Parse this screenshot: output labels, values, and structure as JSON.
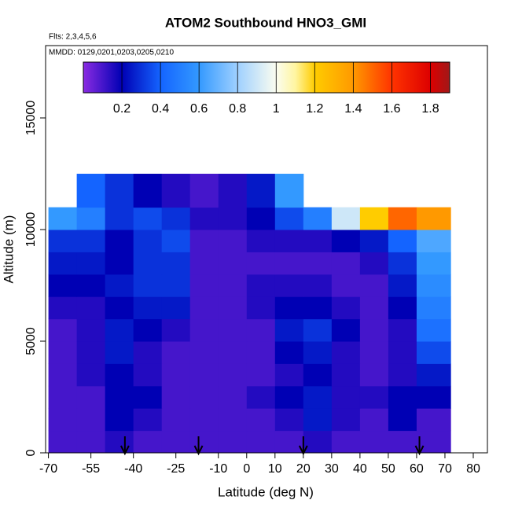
{
  "chart_data": {
    "type": "heatmap",
    "title": "ATOM2 Southbound HNO3_GMI",
    "subtitle": "Flts: 2,3,4,5,6",
    "annotation": "MMDD: 0129,0201,0203,0205,0210",
    "x_label": "Latitude (deg N)",
    "y_label": "Altitude (m)",
    "xlim": [
      -71,
      85
    ],
    "ylim": [
      0,
      18240
    ],
    "xticks": [
      -70,
      -55,
      -40,
      -25,
      -10,
      0,
      10,
      20,
      30,
      40,
      50,
      60,
      70,
      80
    ],
    "yticks": [
      0,
      5000,
      10000,
      15000
    ],
    "x_edges": [
      -70,
      -60,
      -50,
      -40,
      -30,
      -20,
      -10,
      0,
      10,
      20,
      30,
      40,
      50,
      60,
      72
    ],
    "y_edges": [
      0,
      1000,
      2000,
      3000,
      4000,
      5000,
      6000,
      7000,
      8000,
      9000,
      10000,
      11000,
      12500
    ],
    "values": [
      [
        0.1,
        0.1,
        0.15,
        0.1,
        0.1,
        0.1,
        0.1,
        0.1,
        0.1,
        0.15,
        0.1,
        0.1,
        0.1,
        0.1
      ],
      [
        0.1,
        0.1,
        0.2,
        0.15,
        0.1,
        0.1,
        0.1,
        0.1,
        0.15,
        0.25,
        0.15,
        0.1,
        0.2,
        0.1
      ],
      [
        0.1,
        0.1,
        0.2,
        0.2,
        0.1,
        0.1,
        0.1,
        0.15,
        0.2,
        0.25,
        0.15,
        0.15,
        0.2,
        0.2
      ],
      [
        0.1,
        0.15,
        0.2,
        0.15,
        0.1,
        0.1,
        0.1,
        0.1,
        0.15,
        0.2,
        0.15,
        0.1,
        0.15,
        0.25
      ],
      [
        0.1,
        0.15,
        0.25,
        0.15,
        0.1,
        0.1,
        0.1,
        0.1,
        0.2,
        0.25,
        0.15,
        0.1,
        0.15,
        0.35
      ],
      [
        0.1,
        0.15,
        0.25,
        0.2,
        0.15,
        0.1,
        0.1,
        0.1,
        0.25,
        0.3,
        0.2,
        0.1,
        0.15,
        0.45
      ],
      [
        0.15,
        0.15,
        0.2,
        0.25,
        0.25,
        0.1,
        0.1,
        0.15,
        0.2,
        0.2,
        0.15,
        0.1,
        0.2,
        0.5
      ],
      [
        0.2,
        0.2,
        0.25,
        0.3,
        0.3,
        0.1,
        0.1,
        0.15,
        0.15,
        0.15,
        0.1,
        0.1,
        0.25,
        0.55
      ],
      [
        0.25,
        0.25,
        0.2,
        0.3,
        0.3,
        0.1,
        0.1,
        0.1,
        0.1,
        0.1,
        0.1,
        0.15,
        0.3,
        0.6
      ],
      [
        0.3,
        0.3,
        0.2,
        0.3,
        0.35,
        0.1,
        0.1,
        0.15,
        0.15,
        0.15,
        0.2,
        0.25,
        0.4,
        0.65
      ],
      [
        0.6,
        0.5,
        0.3,
        0.35,
        0.3,
        0.15,
        0.15,
        0.2,
        0.35,
        0.5,
        0.9,
        1.2,
        1.5,
        1.4
      ],
      [
        null,
        0.4,
        0.3,
        0.2,
        0.15,
        0.1,
        0.15,
        0.25,
        0.6,
        null,
        null,
        null,
        null,
        null
      ]
    ],
    "clim": [
      0,
      1.9
    ],
    "colorbar_ticks": [
      0.2,
      0.4,
      0.6,
      0.8,
      1.0,
      1.2,
      1.4,
      1.6,
      1.8
    ],
    "colorscale": [
      [
        0,
        "#8a2be2"
      ],
      [
        0.2,
        "#0000b4"
      ],
      [
        0.4,
        "#1464ff"
      ],
      [
        0.6,
        "#3399ff"
      ],
      [
        0.8,
        "#9fd0ff"
      ],
      [
        1.0,
        "#fbfdf0"
      ],
      [
        1.1,
        "#fff5a0"
      ],
      [
        1.2,
        "#ffcc00"
      ],
      [
        1.4,
        "#ff9900"
      ],
      [
        1.6,
        "#ff3300"
      ],
      [
        1.8,
        "#dd0000"
      ],
      [
        1.9,
        "#a01818"
      ]
    ],
    "arrows": [
      -43,
      -17,
      20,
      61
    ]
  }
}
